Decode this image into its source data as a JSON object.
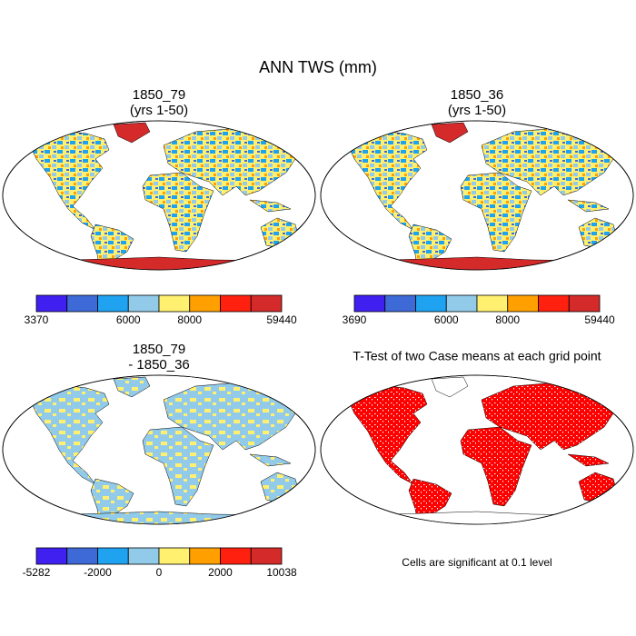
{
  "title": "ANN TWS (mm)",
  "panels": [
    {
      "title": [
        "1850_79",
        "(yrs 1-50)"
      ],
      "colorbar": {
        "colors": [
          "#4020f0",
          "#3e6ad8",
          "#1fa2f0",
          "#92cbea",
          "#fff070",
          "#ffa000",
          "#ff2010",
          "#d42a2a"
        ],
        "labels": [
          3370,
          null,
          null,
          6000,
          null,
          8000,
          null,
          null,
          59440
        ]
      }
    },
    {
      "title": [
        "1850_36",
        "(yrs 1-50)"
      ],
      "colorbar": {
        "colors": [
          "#4020f0",
          "#3e6ad8",
          "#1fa2f0",
          "#92cbea",
          "#fff070",
          "#ffa000",
          "#ff2010",
          "#d42a2a"
        ],
        "labels": [
          3690,
          null,
          null,
          6000,
          null,
          8000,
          null,
          null,
          59440
        ]
      }
    },
    {
      "title": [
        "1850_79",
        "- 1850_36"
      ],
      "colorbar": {
        "colors": [
          "#4020f0",
          "#3e6ad8",
          "#1fa2f0",
          "#92cbea",
          "#fff070",
          "#ffa000",
          "#ff2010",
          "#d42a2a"
        ],
        "labels": [
          -5282,
          null,
          -2000,
          null,
          0,
          null,
          2000,
          null,
          10038
        ]
      }
    },
    {
      "title": [
        "T-Test of two Case means at each grid point"
      ],
      "note": "Cells are significant at 0.1 level"
    }
  ]
}
